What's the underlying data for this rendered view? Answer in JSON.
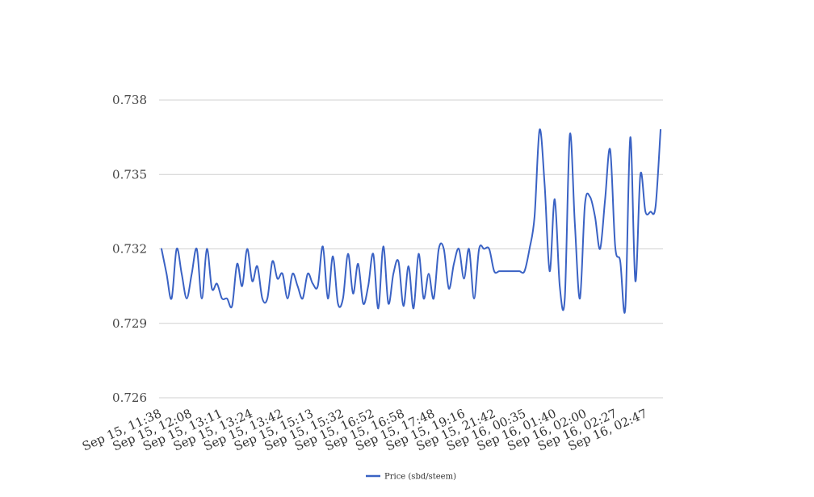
{
  "chart_data": {
    "type": "line",
    "title": "",
    "xlabel": "",
    "ylabel": "",
    "ylim": [
      0.726,
      0.738
    ],
    "yticks": [
      0.726,
      0.729,
      0.732,
      0.735,
      0.738
    ],
    "ytick_labels": [
      "0.726",
      "0.729",
      "0.732",
      "0.735",
      "0.738"
    ],
    "xtick_labels": [
      "Sep 15, 11:38",
      "Sep 15, 12:08",
      "Sep 15, 13:11",
      "Sep 15, 13:24",
      "Sep 15, 13:42",
      "Sep 15, 15:13",
      "Sep 15, 15:32",
      "Sep 15, 16:52",
      "Sep 15, 16:58",
      "Sep 15, 17:48",
      "Sep 15, 19:16",
      "Sep 15, 21:42",
      "Sep 16, 00:35",
      "Sep 16, 01:40",
      "Sep 16, 02:00",
      "Sep 16, 02:27",
      "Sep 16, 02:47"
    ],
    "grid": true,
    "legend_position": "bottom",
    "series": [
      {
        "name": "Price (sbd/steem)",
        "color": "#3a62c4",
        "values": [
          0.732,
          0.731,
          0.73,
          0.732,
          0.731,
          0.73,
          0.731,
          0.732,
          0.73,
          0.732,
          0.7304,
          0.7306,
          0.73,
          0.73,
          0.7297,
          0.7314,
          0.7305,
          0.732,
          0.7307,
          0.7313,
          0.73,
          0.73,
          0.7315,
          0.7308,
          0.731,
          0.73,
          0.731,
          0.7305,
          0.73,
          0.731,
          0.7306,
          0.7305,
          0.7321,
          0.73,
          0.7317,
          0.7298,
          0.73,
          0.7318,
          0.7302,
          0.7314,
          0.7298,
          0.7305,
          0.7318,
          0.7296,
          0.7321,
          0.7298,
          0.731,
          0.7315,
          0.7297,
          0.7313,
          0.7296,
          0.7318,
          0.73,
          0.731,
          0.73,
          0.732,
          0.732,
          0.7304,
          0.7314,
          0.732,
          0.7308,
          0.732,
          0.73,
          0.732,
          0.732,
          0.732,
          0.7311,
          0.7311,
          0.7311,
          0.7311,
          0.7311,
          0.7311,
          0.7311,
          0.732,
          0.7333,
          0.7368,
          0.7346,
          0.7311,
          0.734,
          0.7305,
          0.73,
          0.7366,
          0.733,
          0.73,
          0.7338,
          0.7341,
          0.7333,
          0.732,
          0.734,
          0.736,
          0.7321,
          0.7315,
          0.7296,
          0.7365,
          0.7307,
          0.735,
          0.7335,
          0.7335,
          0.7337,
          0.7368
        ]
      }
    ]
  }
}
